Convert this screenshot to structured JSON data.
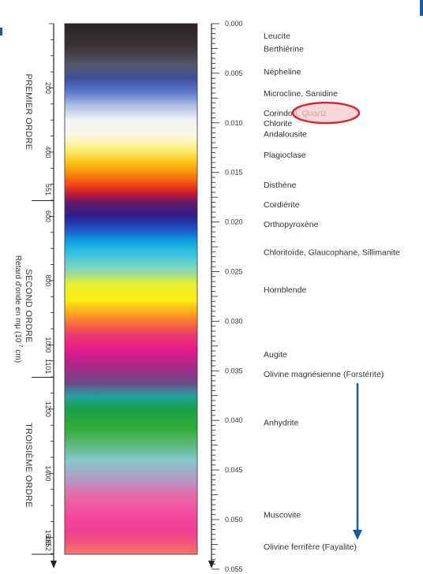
{
  "colors": {
    "annotation_circle": "#d8232a",
    "annotation_fill": "#f7c9cb",
    "arrow": "#1a5aa6",
    "corner_mark": "#1a5aa6"
  },
  "left_axis": {
    "orders": [
      {
        "label": "PREMIER ORDRE"
      },
      {
        "label": "SECOND ORDRE"
      },
      {
        "label": "TROISIÈME ORDRE"
      }
    ],
    "order_boundaries": [
      {
        "label": "551",
        "value": 551
      },
      {
        "label": "1101",
        "value": 1101
      },
      {
        "label": "1652",
        "value": 1652
      }
    ],
    "ticks": [
      {
        "label": "200",
        "value": 200
      },
      {
        "label": "400",
        "value": 400
      },
      {
        "label": "600",
        "value": 600
      },
      {
        "label": "800",
        "value": 800
      },
      {
        "label": "1000",
        "value": 1000
      },
      {
        "label": "1200",
        "value": 1200
      },
      {
        "label": "1400",
        "value": 1400
      },
      {
        "label": "1600",
        "value": 1600
      }
    ],
    "title_line1": "Retard d'onde en mμ (10",
    "title_exp": "-7",
    "title_line2": " cm)"
  },
  "right_axis": {
    "ticks": [
      {
        "label": "0.000",
        "value": 0.0
      },
      {
        "label": "0.005",
        "value": 0.005
      },
      {
        "label": "0.010",
        "value": 0.01
      },
      {
        "label": "0.015",
        "value": 0.015
      },
      {
        "label": "0.020",
        "value": 0.02
      },
      {
        "label": "0.025",
        "value": 0.025
      },
      {
        "label": "0.030",
        "value": 0.03
      },
      {
        "label": "0.035",
        "value": 0.035
      },
      {
        "label": "0.040",
        "value": 0.04
      },
      {
        "label": "0.045",
        "value": 0.045
      },
      {
        "label": "0.050",
        "value": 0.05
      },
      {
        "label": "0.055",
        "value": 0.055
      }
    ]
  },
  "minerals": [
    {
      "name": "Leucite",
      "birefringence": 0.0012
    },
    {
      "name": "Berthiérine",
      "birefringence": 0.0025
    },
    {
      "name": "Népheline",
      "birefringence": 0.0048
    },
    {
      "name": "Microcline, Sanidine",
      "birefringence": 0.007
    },
    {
      "name": "Corindon, Quartz",
      "birefringence": 0.009
    },
    {
      "name": "Chlorite",
      "birefringence": 0.01
    },
    {
      "name": "Andalousite",
      "birefringence": 0.0111
    },
    {
      "name": "Plagioclase",
      "birefringence": 0.0132
    },
    {
      "name": "Disthène",
      "birefringence": 0.0162
    },
    {
      "name": "Cordiérite",
      "birefringence": 0.0182
    },
    {
      "name": "Orthopyroxène",
      "birefringence": 0.0202
    },
    {
      "name": "Chloritoïde, Glaucophane, Sillimanite",
      "birefringence": 0.023
    },
    {
      "name": "Hornblende",
      "birefringence": 0.0268
    },
    {
      "name": "Augite",
      "birefringence": 0.0333
    },
    {
      "name": "Olivine magnésienne (Forstérite)",
      "birefringence": 0.0353
    },
    {
      "name": "Anhydrite",
      "birefringence": 0.0402
    },
    {
      "name": "Muscovite",
      "birefringence": 0.0495
    },
    {
      "name": "Olivine ferrifère (Fayalite)",
      "birefringence": 0.0527
    }
  ],
  "highlight": {
    "mineral": "Corindon, Quartz",
    "note": "circled in red"
  },
  "arrow": {
    "from_mineral": "Olivine magnésienne (Forstérite)",
    "to_mineral": "Olivine ferrifère (Fayalite)"
  },
  "color_stops": [
    {
      "retardation": 0,
      "color": "#2a2424"
    },
    {
      "retardation": 70,
      "color": "#3b3236"
    },
    {
      "retardation": 130,
      "color": "#55586c"
    },
    {
      "retardation": 170,
      "color": "#3c4f9c"
    },
    {
      "retardation": 215,
      "color": "#5d7bcf"
    },
    {
      "retardation": 255,
      "color": "#aebfe2"
    },
    {
      "retardation": 300,
      "color": "#f1f2f4"
    },
    {
      "retardation": 345,
      "color": "#fbf8ea"
    },
    {
      "retardation": 390,
      "color": "#fbee7e"
    },
    {
      "retardation": 430,
      "color": "#fcc81a"
    },
    {
      "retardation": 465,
      "color": "#fa8c0c"
    },
    {
      "retardation": 500,
      "color": "#f34a14"
    },
    {
      "retardation": 530,
      "color": "#c21a34"
    },
    {
      "retardation": 560,
      "color": "#5a1a6e"
    },
    {
      "retardation": 600,
      "color": "#2a1f8c"
    },
    {
      "retardation": 640,
      "color": "#1e56c8"
    },
    {
      "retardation": 680,
      "color": "#0fa6e0"
    },
    {
      "retardation": 720,
      "color": "#3cc6e2"
    },
    {
      "retardation": 770,
      "color": "#8fd8b0"
    },
    {
      "retardation": 810,
      "color": "#e5ef32"
    },
    {
      "retardation": 860,
      "color": "#fbee12"
    },
    {
      "retardation": 900,
      "color": "#fba81e"
    },
    {
      "retardation": 935,
      "color": "#f66c3c"
    },
    {
      "retardation": 970,
      "color": "#ee3872"
    },
    {
      "retardation": 1020,
      "color": "#e0188a"
    },
    {
      "retardation": 1070,
      "color": "#a42a8a"
    },
    {
      "retardation": 1120,
      "color": "#6c4a88"
    },
    {
      "retardation": 1160,
      "color": "#22a2a0"
    },
    {
      "retardation": 1200,
      "color": "#1aa046"
    },
    {
      "retardation": 1260,
      "color": "#32ac3a"
    },
    {
      "retardation": 1310,
      "color": "#5cb87a"
    },
    {
      "retardation": 1360,
      "color": "#86c8cc"
    },
    {
      "retardation": 1420,
      "color": "#b49ac4"
    },
    {
      "retardation": 1470,
      "color": "#e86aa6"
    },
    {
      "retardation": 1530,
      "color": "#f24a9a"
    },
    {
      "retardation": 1580,
      "color": "#f03e92"
    },
    {
      "retardation": 1620,
      "color": "#f05878"
    },
    {
      "retardation": 1652,
      "color": "#f57a6a"
    }
  ]
}
